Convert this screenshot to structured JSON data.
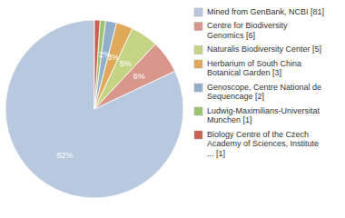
{
  "chart_data": {
    "type": "pie",
    "categories": [
      "Mined from GenBank, NCBI [81]",
      "Centre for Biodiversity\nGenomics [6]",
      "Naturalis Biodiversity Center [5]",
      "Herbarium of South China\nBotanical Garden [3]",
      "Genoscope, Centre National de\nSequencage [2]",
      "Ludwig-Maximilians-Universitat\nMunchen [1]",
      "Biology Centre of the Czech\nAcademy of Sciences, Institute\n... [1]"
    ],
    "values": [
      82,
      6,
      5,
      3,
      2,
      1,
      1
    ],
    "value_labels": [
      "82%",
      "6%",
      "5%",
      "3%",
      "2%",
      null,
      null
    ],
    "colors": [
      "#b8c8de",
      "#d9968a",
      "#c5d484",
      "#e0a85a",
      "#92aeca",
      "#9dc472",
      "#c96050"
    ],
    "data_labels": true,
    "legend": "right"
  }
}
